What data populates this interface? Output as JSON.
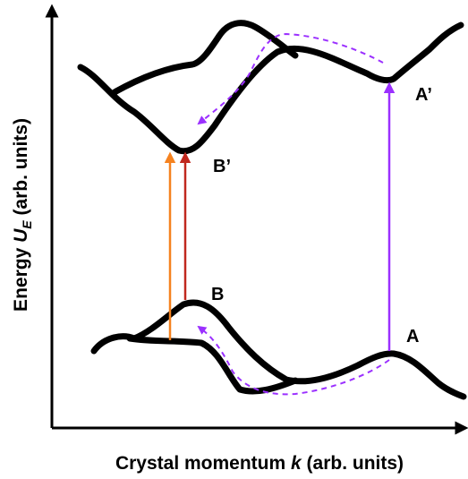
{
  "axes": {
    "x_label_prefix": "Crystal momentum ",
    "x_label_var": "k",
    "x_label_suffix": " (arb. units)",
    "y_label_prefix": "Energy ",
    "y_label_var": "U",
    "y_label_sub": "E",
    "y_label_suffix": " (arb. units)"
  },
  "points": {
    "A": "A",
    "A_prime": "A’",
    "B": "B",
    "B_prime": "B’"
  },
  "colors": {
    "band": "#000000",
    "orange_arrow": "#f5821f",
    "red_arrow": "#c0281e",
    "purple_arrow": "#9b30ff",
    "dashed_path": "#9b30ff"
  }
}
